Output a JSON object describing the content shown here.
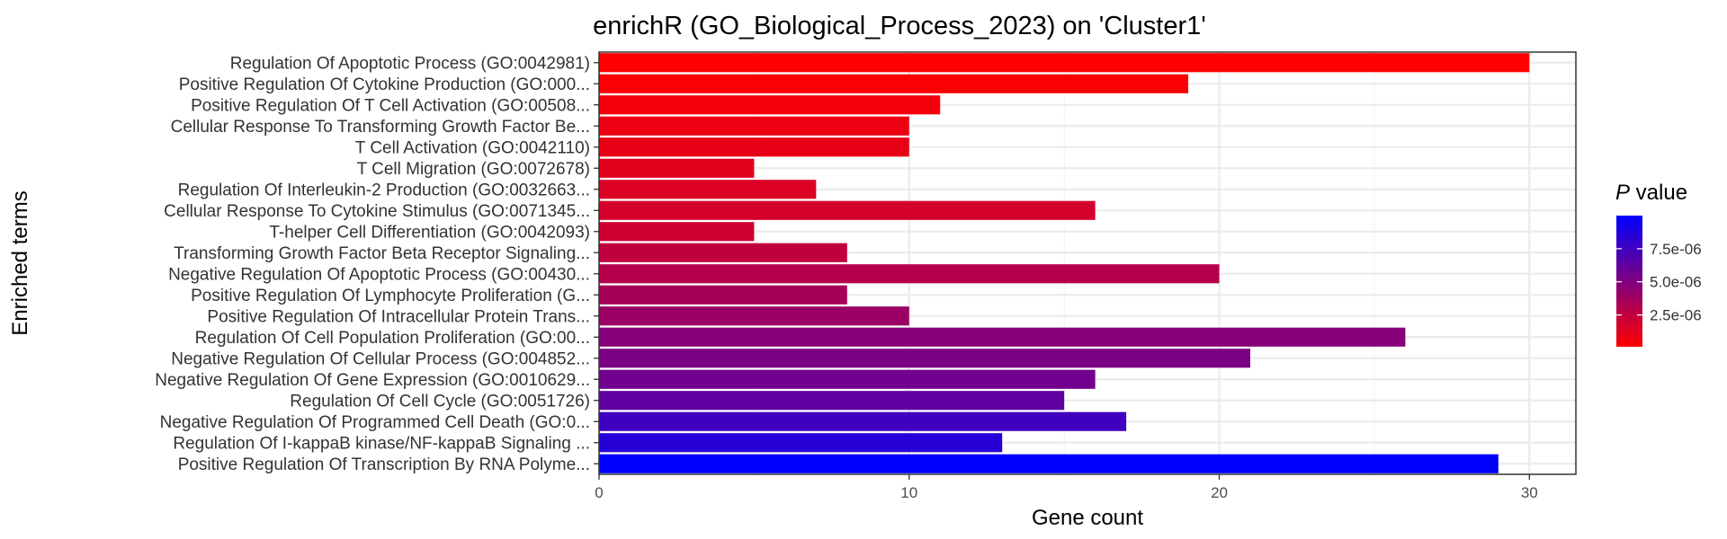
{
  "chart_data": {
    "type": "bar",
    "orientation": "horizontal",
    "title": "enrichR (GO_Biological_Process_2023) on 'Cluster1'",
    "xlabel": "Gene count",
    "ylabel": "Enriched terms",
    "xlim": [
      0,
      31.5
    ],
    "xticks": [
      0,
      10,
      20,
      30
    ],
    "grid": true,
    "legend_placement": "right",
    "legend": {
      "title_italic": "P",
      "title_rest": " value",
      "labels": [
        "7.5e-06",
        "5.0e-06",
        "2.5e-06"
      ],
      "ticks": [
        7.5e-06,
        5e-06,
        2.5e-06
      ],
      "range": [
        1e-07,
        1e-05
      ],
      "low_color": "#ff0000",
      "high_color": "#0000ff"
    },
    "categories": [
      "Regulation Of Apoptotic Process (GO:0042981)",
      "Positive Regulation Of Cytokine Production (GO:000...",
      "Positive Regulation Of T Cell Activation (GO:00508...",
      "Cellular Response To Transforming Growth Factor Be...",
      "T Cell Activation (GO:0042110)",
      "T Cell Migration (GO:0072678)",
      "Regulation Of Interleukin-2 Production (GO:0032663...",
      "Cellular Response To Cytokine Stimulus (GO:0071345...",
      "T-helper Cell Differentiation (GO:0042093)",
      "Transforming Growth Factor Beta Receptor Signaling...",
      "Negative Regulation Of Apoptotic Process (GO:00430...",
      "Positive Regulation Of Lymphocyte Proliferation (G...",
      "Positive Regulation Of Intracellular Protein Trans...",
      "Regulation Of Cell Population Proliferation (GO:00...",
      "Negative Regulation Of Cellular Process (GO:004852...",
      "Negative Regulation Of Gene Expression (GO:0010629...",
      "Regulation Of Cell Cycle (GO:0051726)",
      "Negative Regulation Of Programmed Cell Death (GO:0...",
      "Regulation Of I-kappaB kinase/NF-kappaB Signaling ...",
      "Positive Regulation Of Transcription By RNA Polyme..."
    ],
    "values": [
      30,
      19,
      11,
      10,
      10,
      5,
      7,
      16,
      5,
      8,
      20,
      8,
      10,
      26,
      21,
      16,
      15,
      17,
      13,
      29
    ],
    "p_values": [
      1e-07,
      3e-07,
      5e-07,
      8e-07,
      1e-06,
      1.2e-06,
      1.5e-06,
      1.8e-06,
      2e-06,
      2.5e-06,
      3e-06,
      3.5e-06,
      4e-06,
      4.8e-06,
      5.2e-06,
      5.6e-06,
      6.3e-06,
      7.5e-06,
      8.5e-06,
      1e-05
    ]
  }
}
